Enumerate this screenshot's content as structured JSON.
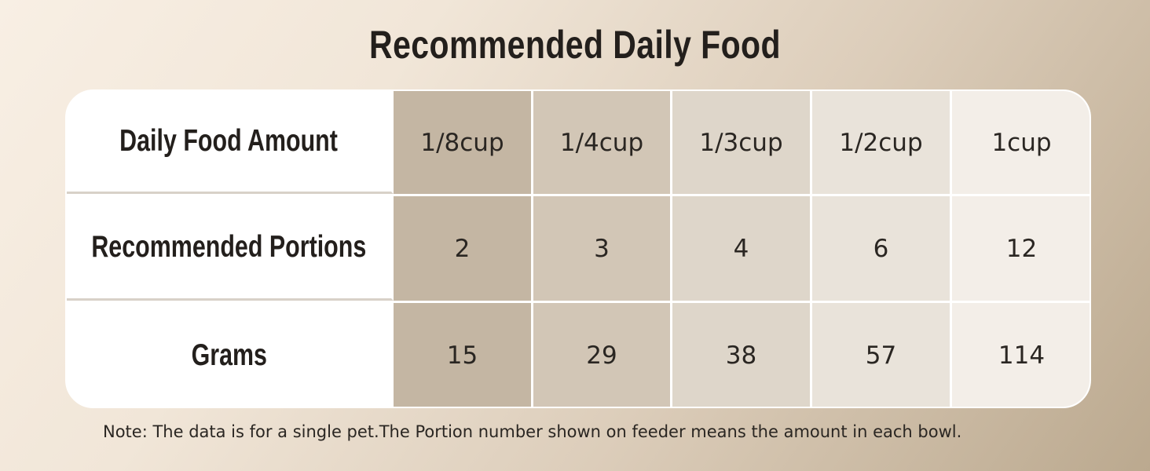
{
  "title": "Recommended Daily Food",
  "table": {
    "rows": [
      {
        "header": "Daily Food Amount",
        "cells": [
          "1/8cup",
          "1/4cup",
          "1/3cup",
          "1/2cup",
          "1cup"
        ]
      },
      {
        "header": "Recommended Portions",
        "cells": [
          "2",
          "3",
          "4",
          "6",
          "12"
        ]
      },
      {
        "header": "Grams",
        "cells": [
          "15",
          "29",
          "38",
          "57",
          "114"
        ]
      }
    ]
  },
  "note": "Note: The data is for a single pet.The Portion number shown on feeder means the amount in each bowl."
}
